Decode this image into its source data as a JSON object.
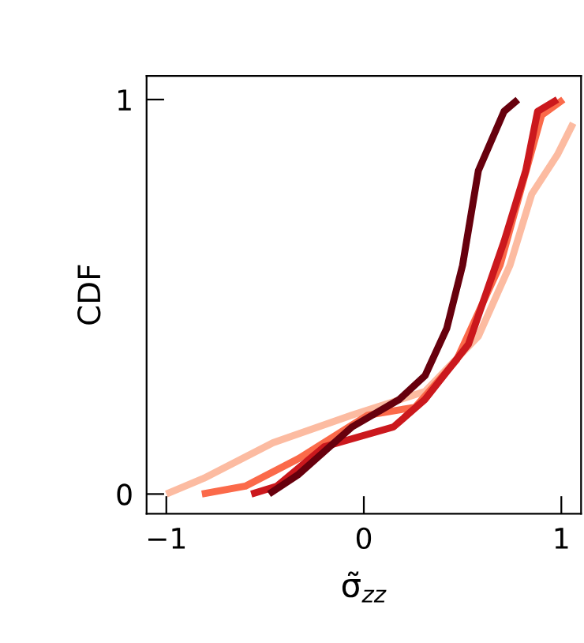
{
  "chart_data": {
    "type": "line",
    "xlabel": "σ̃$_{zz}$",
    "ylabel": "CDF",
    "xlim": [
      -1.1,
      1.1
    ],
    "ylim": [
      -0.05,
      1.06
    ],
    "xticks": [
      {
        "value": -1,
        "label": "−1"
      },
      0,
      1
    ],
    "yticks": [
      0,
      1
    ],
    "grid": false,
    "legend": false,
    "marker": "none",
    "line_style": "solid",
    "series": [
      {
        "color": "#fcbba1",
        "x": [
          -1.0,
          -0.81,
          -0.46,
          -0.06,
          0.31,
          0.58,
          0.74,
          0.85,
          0.98,
          1.06
        ],
        "values": [
          0,
          0.04,
          0.13,
          0.2,
          0.26,
          0.4,
          0.58,
          0.76,
          0.86,
          0.94
        ]
      },
      {
        "color": "#fb6a4a",
        "x": [
          -0.82,
          -0.6,
          -0.33,
          0.02,
          0.26,
          0.47,
          0.69,
          0.8,
          0.9,
          1.01
        ],
        "values": [
          0,
          0.02,
          0.09,
          0.2,
          0.22,
          0.34,
          0.58,
          0.78,
          0.96,
          1.0
        ]
      },
      {
        "color": "#cb181d",
        "x": [
          -0.57,
          -0.44,
          -0.2,
          0.15,
          0.31,
          0.53,
          0.71,
          0.82,
          0.88,
          0.98
        ],
        "values": [
          0,
          0.02,
          0.12,
          0.17,
          0.24,
          0.38,
          0.64,
          0.82,
          0.97,
          1.0
        ]
      },
      {
        "color": "#67000d",
        "x": [
          -0.48,
          -0.33,
          -0.06,
          0.18,
          0.31,
          0.42,
          0.5,
          0.58,
          0.71,
          0.78
        ],
        "values": [
          0,
          0.05,
          0.17,
          0.24,
          0.3,
          0.42,
          0.58,
          0.82,
          0.97,
          1.0
        ]
      }
    ]
  }
}
